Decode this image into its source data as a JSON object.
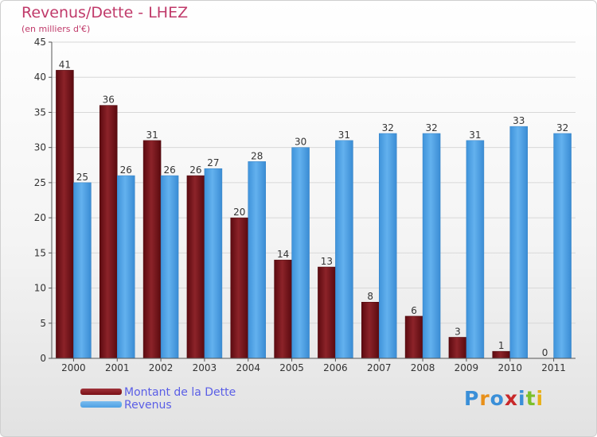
{
  "header": {
    "title": "Revenus/Dette - LHEZ",
    "subtitle": "(en milliers d'€)"
  },
  "legend": {
    "items": [
      {
        "label": "Montant de la Dette",
        "color": "#7a1016"
      },
      {
        "label": "Revenus",
        "color": "#4ea1e3"
      }
    ]
  },
  "logo": {
    "text": "Proxiti"
  },
  "chart_data": {
    "type": "bar",
    "title": "Revenus/Dette - LHEZ",
    "subtitle": "(en milliers d'€)",
    "categories": [
      "2000",
      "2001",
      "2002",
      "2003",
      "2004",
      "2005",
      "2006",
      "2007",
      "2008",
      "2009",
      "2010",
      "2011"
    ],
    "series": [
      {
        "name": "Montant de la Dette",
        "color": "#7a1016",
        "values": [
          41,
          36,
          31,
          26,
          20,
          14,
          13,
          8,
          6,
          3,
          1,
          0
        ]
      },
      {
        "name": "Revenus",
        "color": "#4ea1e3",
        "values": [
          25,
          26,
          26,
          27,
          28,
          30,
          31,
          32,
          32,
          31,
          33,
          32
        ]
      }
    ],
    "ylim": [
      0,
      45
    ],
    "yticks": [
      0,
      5,
      10,
      15,
      20,
      25,
      30,
      35,
      40,
      45
    ],
    "grid": true,
    "legend_position": "bottom-left"
  }
}
